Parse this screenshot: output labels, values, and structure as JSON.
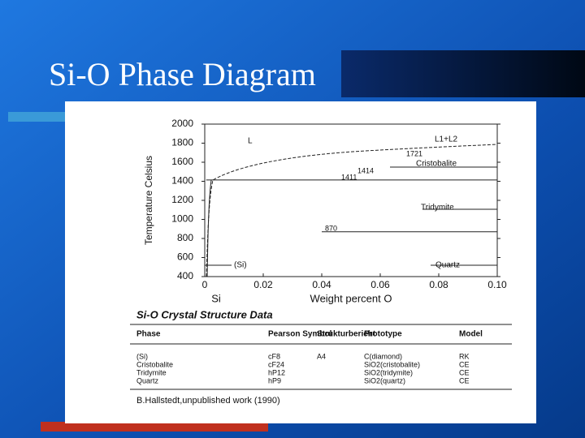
{
  "title": "Si-O Phase Diagram",
  "diagram": {
    "ylabel": "Temperature Celsius",
    "xlabel": "Weight percent O",
    "x_origin_label": "Si",
    "xlim": [
      0,
      0.1
    ],
    "xticks": [
      0,
      {
        "value": 0.02,
        "label": "0.02"
      },
      {
        "value": 0.04,
        "label": "0.04"
      },
      {
        "value": 0.06,
        "label": "0.06"
      },
      {
        "value": 0.08,
        "label": "0.08"
      },
      {
        "value": 0.1,
        "label": "0.10"
      }
    ],
    "ylim": [
      400,
      2000
    ],
    "yticks": [
      400,
      600,
      800,
      1000,
      1200,
      1400,
      1600,
      1800,
      2000
    ],
    "isotherms": [
      1414,
      870
    ],
    "temperature_labels": [
      1721,
      1414,
      1411,
      870
    ],
    "region_labels": [
      "L",
      "L1+L2",
      "Cristobalite",
      "Tridymite",
      "Quartz",
      "(Si)"
    ]
  },
  "table": {
    "title": "Si-O Crystal Structure Data",
    "headers": [
      "Phase",
      "Pearson Symbol",
      "Strukturbericht",
      "Prototype",
      "Model"
    ],
    "rows": [
      [
        "(Si)",
        "cF8",
        "A4",
        "C(diamond)",
        "RK"
      ],
      [
        "Cristobalite",
        "cF24",
        null,
        "SiO2(cristobalite)",
        "CE"
      ],
      [
        "Tridymite",
        "hP12",
        null,
        "SiO2(tridymite)",
        "CE"
      ],
      [
        "Quartz",
        "hP9",
        null,
        "SiO2(quartz)",
        "CE"
      ]
    ],
    "source": "B.Hallstedt,unpublished work (1990)"
  }
}
